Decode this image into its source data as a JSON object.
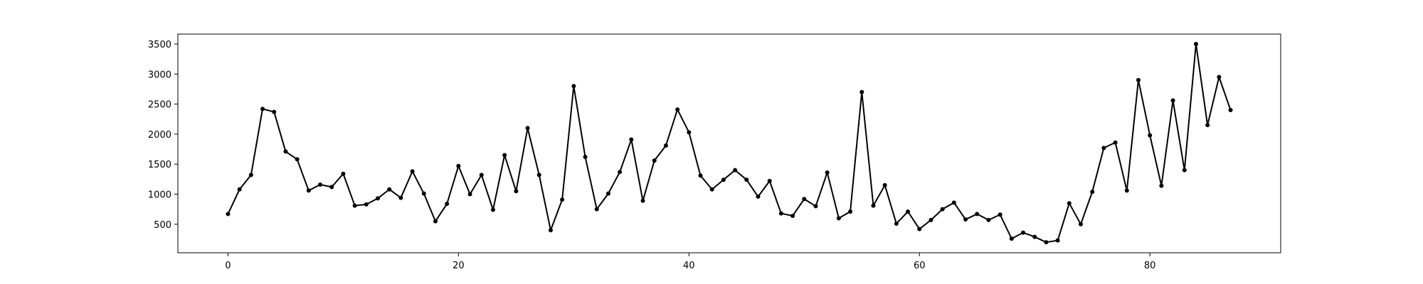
{
  "chart_data": {
    "type": "line",
    "title": "",
    "xlabel": "",
    "ylabel": "",
    "xlim": [
      -4.35,
      91.35
    ],
    "ylim": [
      25,
      3665
    ],
    "xticks": [
      0,
      20,
      40,
      60,
      80
    ],
    "yticks": [
      500,
      1000,
      1500,
      2000,
      2500,
      3000,
      3500
    ],
    "grid": false,
    "legend": "none",
    "colors": {
      "line": "#000000",
      "marker": "#000000",
      "axes": "#000000",
      "background": "#ffffff"
    },
    "series": [
      {
        "x": [
          0,
          1,
          2,
          3,
          4,
          5,
          6,
          7,
          8,
          9,
          10,
          11,
          12,
          13,
          14,
          15,
          16,
          17,
          18,
          19,
          20,
          21,
          22,
          23,
          24,
          25,
          26,
          27,
          28,
          29,
          30,
          31,
          32,
          33,
          34,
          35,
          36,
          37,
          38,
          39,
          40,
          41,
          42,
          43,
          44,
          45,
          46,
          47,
          48,
          49,
          50,
          51,
          52,
          53,
          54,
          55,
          56,
          57,
          58,
          59,
          60,
          61,
          62,
          63,
          64,
          65,
          66,
          67,
          68,
          69,
          70,
          71,
          72,
          73,
          74,
          75,
          76,
          77,
          78,
          79,
          80,
          81,
          82,
          83,
          84,
          85,
          86,
          87
        ],
        "values": [
          670,
          1080,
          1320,
          2420,
          2370,
          1710,
          1580,
          1060,
          1160,
          1120,
          1340,
          810,
          830,
          930,
          1080,
          940,
          1380,
          1010,
          550,
          840,
          1470,
          1000,
          1320,
          740,
          1650,
          1050,
          2100,
          1320,
          400,
          910,
          2800,
          1620,
          750,
          1010,
          1370,
          1910,
          890,
          1560,
          1810,
          2410,
          2030,
          1310,
          1080,
          1240,
          1400,
          1240,
          960,
          1220,
          680,
          640,
          920,
          800,
          1360,
          600,
          710,
          2700,
          810,
          1150,
          510,
          710,
          420,
          570,
          750,
          860,
          580,
          670,
          570,
          660,
          260,
          360,
          290,
          200,
          230,
          850,
          500,
          1040,
          1770,
          1860,
          1060,
          2900,
          1980,
          1140,
          2560,
          1400,
          3500,
          2150,
          2950,
          2400
        ]
      }
    ]
  }
}
